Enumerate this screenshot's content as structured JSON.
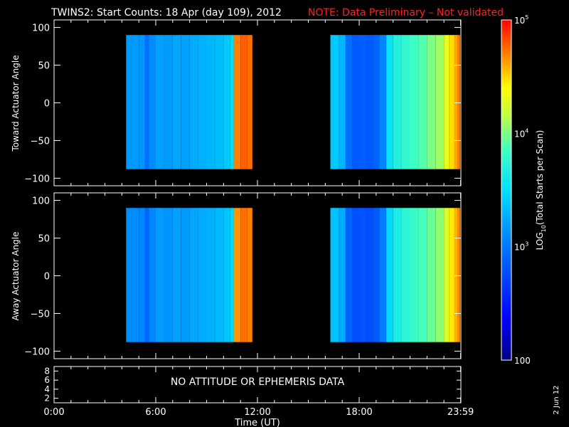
{
  "title": "TWINS2: Start Counts: 18 Apr (day 109), 2012",
  "note": "NOTE: Data Preliminary – Not validated",
  "colors": {
    "note": "#ff2020",
    "background": "#000000",
    "axes": "#ffffff"
  },
  "side_stamp": "2 Jun 12",
  "x_axis": {
    "label": "Time (UT)",
    "range": [
      0,
      24
    ],
    "ticks": [
      {
        "value": 0,
        "label": "0:00"
      },
      {
        "value": 6,
        "label": "6:00"
      },
      {
        "value": 12,
        "label": "12:00"
      },
      {
        "value": 18,
        "label": "18:00"
      },
      {
        "value": 23.983,
        "label": "23:59"
      }
    ]
  },
  "panels": [
    {
      "ylabel": "Toward Actuator Angle",
      "ylim": [
        -110,
        110
      ],
      "yticks": [
        "100",
        "50",
        "0",
        "−50",
        "−100"
      ],
      "ytick_values": [
        100,
        50,
        0,
        -50,
        -100
      ]
    },
    {
      "ylabel": "Away Actuator Angle",
      "ylim": [
        -110,
        110
      ],
      "yticks": [
        "100",
        "50",
        "0",
        "−50",
        "−100"
      ],
      "ytick_values": [
        100,
        50,
        0,
        -50,
        -100
      ]
    }
  ],
  "ephemeris_panel": {
    "message": "NO ATTITUDE OR EPHEMERIS DATA",
    "yticks": [
      "8",
      "6",
      "4",
      "2"
    ],
    "ytick_values": [
      8,
      6,
      4,
      2
    ],
    "ylim": [
      1,
      9
    ]
  },
  "colorbar": {
    "label": "LOG10(Total Starts per Scan)",
    "label_main": "LOG",
    "label_sub": "10",
    "label_rest": "(Total Starts per Scan)",
    "scale": "log",
    "range": [
      100,
      100000
    ],
    "ticks": [
      {
        "value": 100,
        "label": "100"
      },
      {
        "value": 1000,
        "label": "10",
        "exp": "3"
      },
      {
        "value": 10000,
        "label": "10",
        "exp": "4"
      },
      {
        "value": 100000,
        "label": "10",
        "exp": "5"
      }
    ]
  },
  "chart_data": {
    "type": "heatmap",
    "x_units": "hours UT",
    "y_units": "actuator angle (deg)",
    "value_units": "total starts per scan (log scale)",
    "data_windows": [
      {
        "start": 4.25,
        "end": 11.7,
        "angle_range": [
          -88,
          90
        ]
      },
      {
        "start": 16.3,
        "end": 23.95,
        "angle_range": [
          -88,
          90
        ]
      }
    ],
    "series": [
      {
        "name": "Toward Actuator Angle",
        "times": [
          4.25,
          4.6,
          5.0,
          5.35,
          5.6,
          6.0,
          6.5,
          7.0,
          7.5,
          8.0,
          8.5,
          9.0,
          9.5,
          10.0,
          10.4,
          10.6,
          11.0,
          11.4,
          11.7,
          16.3,
          16.8,
          17.2,
          17.6,
          18.0,
          18.4,
          18.8,
          19.2,
          19.6,
          20.0,
          20.5,
          21.0,
          21.5,
          22.0,
          22.5,
          23.0,
          23.3,
          23.6,
          23.8,
          23.95
        ],
        "counts": [
          1500,
          1500,
          1400,
          900,
          1300,
          1600,
          1500,
          1700,
          1600,
          1800,
          1900,
          2000,
          2200,
          2500,
          3000,
          50000,
          60000,
          55000,
          55000,
          2500,
          2000,
          900,
          700,
          750,
          700,
          800,
          1200,
          3500,
          5000,
          6000,
          7000,
          8000,
          10000,
          12000,
          20000,
          30000,
          40000,
          50000,
          60000
        ]
      },
      {
        "name": "Away Actuator Angle",
        "times": [
          4.25,
          4.6,
          5.0,
          5.35,
          5.6,
          6.0,
          6.5,
          7.0,
          7.5,
          8.0,
          8.5,
          9.0,
          9.5,
          10.0,
          10.4,
          10.6,
          11.0,
          11.4,
          11.7,
          16.3,
          16.8,
          17.2,
          17.6,
          18.0,
          18.4,
          18.8,
          19.2,
          19.6,
          20.0,
          20.5,
          21.0,
          21.5,
          22.0,
          22.5,
          23.0,
          23.3,
          23.6,
          23.8,
          23.95
        ],
        "counts": [
          1300,
          1300,
          1200,
          800,
          1200,
          1500,
          1400,
          1600,
          1500,
          1700,
          1800,
          1900,
          2100,
          2400,
          2900,
          45000,
          55000,
          50000,
          50000,
          2300,
          1800,
          800,
          600,
          650,
          600,
          700,
          1100,
          3000,
          4500,
          5500,
          6500,
          7500,
          9000,
          11000,
          18000,
          28000,
          38000,
          48000,
          55000
        ]
      }
    ]
  }
}
